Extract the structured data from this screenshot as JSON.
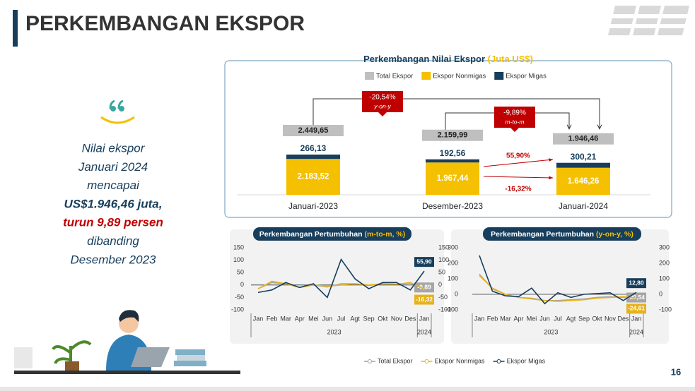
{
  "header": {
    "title": "PERKEMBANGAN EKSPOR",
    "page_number": "16"
  },
  "quote": {
    "lines": [
      "Nilai ekspor",
      "Januari 2024",
      "mencapai"
    ],
    "highlight": "US$1.946,46 juta,",
    "decline": "turun 9,89 persen",
    "rest": [
      "dibanding",
      "Desember 2023"
    ]
  },
  "chart_data": [
    {
      "type": "stacked-bar",
      "title": "Perkembangan Nilai Ekspor",
      "title_unit": "(Juta US$)",
      "categories": [
        "Januari-2023",
        "Desember-2023",
        "Januari-2024"
      ],
      "series": [
        {
          "name": "Total Ekspor",
          "color": "#bfbfbf",
          "values": [
            2449.65,
            2159.99,
            1946.46
          ],
          "value_labels": [
            "2.449,65",
            "2.159,99",
            "1.946,46"
          ]
        },
        {
          "name": "Ekspor Nonmigas",
          "color": "#f5c000",
          "values": [
            2183.52,
            1967.44,
            1646.26
          ],
          "value_labels": [
            "2.183,52",
            "1.967,44",
            "1.646,26"
          ]
        },
        {
          "name": "Ekspor Migas",
          "color": "#173e5c",
          "values": [
            266.13,
            192.56,
            300.21
          ],
          "value_labels": [
            "266,13",
            "192,56",
            "300,21"
          ]
        }
      ],
      "annotations": {
        "yoy": "-20,54%",
        "yoy_label": "y-on-y",
        "mtm": "-9,89%",
        "mtm_label": "m-to-m",
        "migas_change": "55,90%",
        "nonmigas_change": "-16,32%"
      }
    },
    {
      "type": "line",
      "title": "Perkembangan Pertumbuhan",
      "title_unit": "(m-to-m, %)",
      "categories": [
        "Jan",
        "Feb",
        "Mar",
        "Apr",
        "Mei",
        "Jun",
        "Jul",
        "Agt",
        "Sep",
        "Okt",
        "Nov",
        "Des",
        "Jan"
      ],
      "year_labels": [
        "2023",
        "2024"
      ],
      "ylim": [
        -100,
        150
      ],
      "yticks": [
        150,
        100,
        50,
        0,
        -50,
        -100
      ],
      "y2lim": [
        -100,
        150
      ],
      "y2ticks": [
        150,
        100,
        50,
        0,
        -50,
        -100
      ],
      "series": [
        {
          "name": "Total Ekspor",
          "color": "#a6a6a6",
          "values": [
            -15,
            10,
            5,
            -10,
            0,
            -8,
            5,
            5,
            -2,
            5,
            3,
            8,
            -9.89
          ],
          "value_labels": [
            null,
            null,
            null,
            null,
            null,
            null,
            null,
            null,
            null,
            null,
            null,
            null,
            "-9,89"
          ]
        },
        {
          "name": "Ekspor Nonmigas",
          "color": "#e8b21a",
          "values": [
            -15,
            15,
            5,
            -10,
            0,
            -5,
            0,
            5,
            0,
            5,
            3,
            10,
            -16.32
          ],
          "value_labels": [
            null,
            null,
            null,
            null,
            null,
            null,
            null,
            null,
            null,
            null,
            null,
            null,
            "-16,32"
          ]
        },
        {
          "name": "Ekspor Migas",
          "color": "#173e5c",
          "values": [
            -30,
            -20,
            10,
            -10,
            5,
            -50,
            103,
            25,
            -15,
            10,
            10,
            -20,
            55.9
          ],
          "value_labels": [
            null,
            null,
            null,
            null,
            null,
            null,
            null,
            null,
            null,
            null,
            null,
            null,
            "55,90"
          ]
        }
      ]
    },
    {
      "type": "line",
      "title": "Perkembangan Pertumbuhan",
      "title_unit": "(y-on-y, %)",
      "categories": [
        "Jan",
        "Feb",
        "Mar",
        "Apr",
        "Mei",
        "Jun",
        "Jul",
        "Agt",
        "Sep",
        "Okt",
        "Nov",
        "Des",
        "Jan"
      ],
      "year_labels": [
        "2023",
        "2024"
      ],
      "ylim": [
        -100,
        300
      ],
      "yticks": [
        300,
        200,
        100,
        0,
        -100
      ],
      "y2lim": [
        -100,
        300
      ],
      "y2ticks": [
        300,
        200,
        100,
        0,
        -100
      ],
      "series": [
        {
          "name": "Total Ekspor",
          "color": "#a6a6a6",
          "values": [
            130,
            35,
            0,
            -20,
            -25,
            -40,
            -40,
            -35,
            -30,
            -20,
            -15,
            -20,
            -20.54
          ],
          "value_labels": [
            null,
            null,
            null,
            null,
            null,
            null,
            null,
            null,
            null,
            null,
            null,
            null,
            "-20,54"
          ]
        },
        {
          "name": "Ekspor Nonmigas",
          "color": "#e8b21a",
          "values": [
            120,
            40,
            0,
            -20,
            -30,
            -40,
            -45,
            -40,
            -35,
            -25,
            -20,
            -15,
            -24.61
          ],
          "value_labels": [
            null,
            null,
            null,
            null,
            null,
            null,
            null,
            null,
            null,
            null,
            null,
            null,
            "-24,61"
          ]
        },
        {
          "name": "Ekspor Migas",
          "color": "#173e5c",
          "values": [
            250,
            20,
            -10,
            -15,
            40,
            -60,
            10,
            -20,
            0,
            5,
            10,
            -40,
            12.8
          ],
          "value_labels": [
            null,
            null,
            null,
            null,
            null,
            null,
            null,
            null,
            null,
            null,
            null,
            null,
            "12,80"
          ]
        }
      ]
    }
  ]
}
